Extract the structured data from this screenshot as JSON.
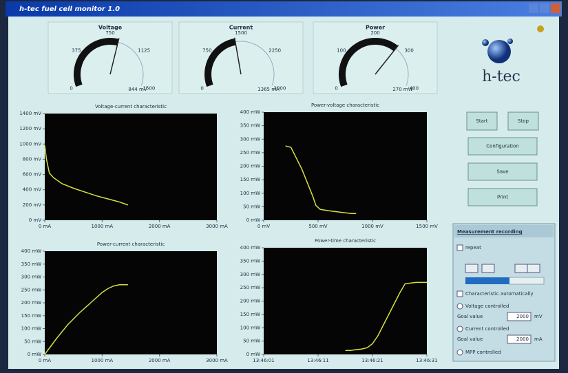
{
  "window": {
    "title": "h-tec fuel cell monitor 1.0"
  },
  "gauges": [
    {
      "title": "Voltage",
      "lim": [
        0,
        1500
      ],
      "ticks": [
        0,
        375,
        750,
        1125,
        1500
      ],
      "reading": {
        "value": 844,
        "label": "844 mV"
      }
    },
    {
      "title": "Current",
      "lim": [
        0,
        3000
      ],
      "ticks": [
        0,
        750,
        1500,
        2250,
        3000
      ],
      "reading": {
        "value": 1365,
        "label": "1365 mA"
      }
    },
    {
      "title": "Power",
      "lim": [
        0,
        400
      ],
      "ticks": [
        0,
        100,
        200,
        300,
        400
      ],
      "reading": {
        "value": 270,
        "label": "270 mW"
      }
    }
  ],
  "logo": "h-tec",
  "charts": [
    {
      "title": "Voltage-current characteristic",
      "xlim": [
        0,
        3000
      ],
      "ylim": [
        0,
        1400
      ],
      "xticks": [
        {
          "value": 0,
          "label": "0 mA"
        },
        {
          "value": 1000,
          "label": "1000 mA"
        },
        {
          "value": 2000,
          "label": "2000 mA"
        },
        {
          "value": 3000,
          "label": "3000 mA"
        }
      ],
      "yticks": [
        {
          "value": 0,
          "label": "0 mV"
        },
        {
          "value": 200,
          "label": "200 mV"
        },
        {
          "value": 400,
          "label": "400 mV"
        },
        {
          "value": 600,
          "label": "600 mV"
        },
        {
          "value": 800,
          "label": "800 mV"
        },
        {
          "value": 1000,
          "label": "1000 mV"
        },
        {
          "value": 1200,
          "label": "1200 mV"
        },
        {
          "value": 1400,
          "label": "1400 mV"
        }
      ],
      "trace": {
        "x": [
          0,
          30,
          80,
          150,
          300,
          500,
          700,
          900,
          1100,
          1300,
          1450
        ],
        "y": [
          980,
          800,
          620,
          560,
          480,
          420,
          370,
          320,
          280,
          240,
          200
        ]
      }
    },
    {
      "title": "Power-voltage characteristic",
      "xlim": [
        0,
        1500
      ],
      "ylim": [
        0,
        400
      ],
      "xticks": [
        {
          "value": 0,
          "label": "0 mV"
        },
        {
          "value": 500,
          "label": "500 mV"
        },
        {
          "value": 1000,
          "label": "1000 mV"
        },
        {
          "value": 1500,
          "label": "1500 mV"
        }
      ],
      "yticks": [
        {
          "value": 0,
          "label": "0 mW"
        },
        {
          "value": 50,
          "label": "50 mW"
        },
        {
          "value": 100,
          "label": "100 mW"
        },
        {
          "value": 150,
          "label": "150 mW"
        },
        {
          "value": 200,
          "label": "200 mW"
        },
        {
          "value": 250,
          "label": "250 mW"
        },
        {
          "value": 300,
          "label": "300 mW"
        },
        {
          "value": 350,
          "label": "350 mW"
        },
        {
          "value": 400,
          "label": "400 mW"
        }
      ],
      "trace": {
        "x": [
          200,
          250,
          300,
          350,
          400,
          450,
          480,
          520,
          600,
          700,
          800,
          850
        ],
        "y": [
          275,
          270,
          230,
          190,
          140,
          90,
          55,
          40,
          35,
          30,
          25,
          25
        ]
      }
    },
    {
      "title": "Power-current characteristic",
      "xlim": [
        0,
        3000
      ],
      "ylim": [
        0,
        400
      ],
      "xticks": [
        {
          "value": 0,
          "label": "0 mA"
        },
        {
          "value": 1000,
          "label": "1000 mA"
        },
        {
          "value": 2000,
          "label": "2000 mA"
        },
        {
          "value": 3000,
          "label": "3000 mA"
        }
      ],
      "yticks": [
        {
          "value": 0,
          "label": "0 mW"
        },
        {
          "value": 50,
          "label": "50 mW"
        },
        {
          "value": 100,
          "label": "100 mW"
        },
        {
          "value": 150,
          "label": "150 mW"
        },
        {
          "value": 200,
          "label": "200 mW"
        },
        {
          "value": 250,
          "label": "250 mW"
        },
        {
          "value": 300,
          "label": "300 mW"
        },
        {
          "value": 350,
          "label": "350 mW"
        },
        {
          "value": 400,
          "label": "400 mW"
        }
      ],
      "trace": {
        "x": [
          0,
          100,
          200,
          400,
          600,
          800,
          1000,
          1100,
          1200,
          1300,
          1450
        ],
        "y": [
          0,
          30,
          60,
          115,
          160,
          200,
          240,
          255,
          265,
          270,
          270
        ]
      }
    },
    {
      "title": "Power-time characteristic",
      "xlim": [
        1,
        31
      ],
      "ylim": [
        0,
        400
      ],
      "xticks": [
        {
          "value": 1,
          "label": "13:46:01"
        },
        {
          "value": 11,
          "label": "13:46:11"
        },
        {
          "value": 21,
          "label": "13:46:21"
        },
        {
          "value": 31,
          "label": "13:46:31"
        }
      ],
      "yticks": [
        {
          "value": 0,
          "label": "0 mW"
        },
        {
          "value": 50,
          "label": "50 mW"
        },
        {
          "value": 100,
          "label": "100 mW"
        },
        {
          "value": 150,
          "label": "150 mW"
        },
        {
          "value": 200,
          "label": "200 mW"
        },
        {
          "value": 250,
          "label": "250 mW"
        },
        {
          "value": 300,
          "label": "300 mW"
        },
        {
          "value": 350,
          "label": "350 mW"
        },
        {
          "value": 400,
          "label": "400 mW"
        }
      ],
      "trace": {
        "x": [
          16,
          17,
          18,
          19,
          20,
          21,
          22,
          23,
          24,
          25,
          26,
          27,
          29,
          31
        ],
        "y": [
          15,
          15,
          18,
          20,
          25,
          40,
          70,
          110,
          150,
          190,
          230,
          265,
          270,
          270
        ]
      }
    }
  ],
  "buttons": {
    "start": "Start",
    "stop": "Stop",
    "configuration": "Configuration",
    "save": "Save",
    "print": "Print"
  },
  "recording": {
    "title": "Measurement recording",
    "repeat": "repeat",
    "characteristic": "Characteristic automatically",
    "voltage": "Voltage controlled",
    "voltage_goal": "Goal value",
    "voltage_value": 2000,
    "voltage_unit": "mV",
    "current": "Current controlled",
    "current_goal": "Goal value",
    "current_value": 2000,
    "current_unit": "mA",
    "mpp": "MPP controlled"
  }
}
